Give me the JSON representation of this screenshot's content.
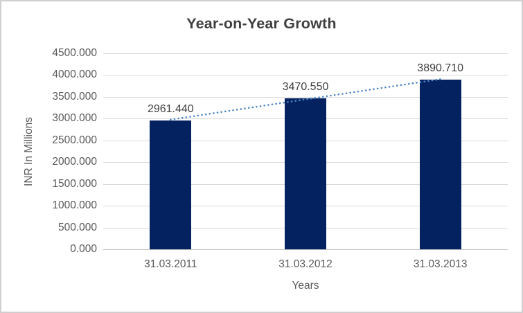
{
  "chart_data": {
    "type": "bar",
    "title": "Year-on-Year Growth",
    "xlabel": "Years",
    "ylabel": "INR In Millions",
    "categories": [
      "31.03.2011",
      "31.03.2012",
      "31.03.2013"
    ],
    "values": [
      2961.44,
      3470.55,
      3890.71
    ],
    "data_labels": [
      "2961.440",
      "3470.550",
      "3890.710"
    ],
    "ylim": [
      0,
      4500
    ],
    "ytick_step": 500,
    "ytick_labels": [
      "0.000",
      "500.000",
      "1000.000",
      "1500.000",
      "2000.000",
      "2500.000",
      "3000.000",
      "3500.000",
      "4000.000",
      "4500.000"
    ],
    "grid": true,
    "legend": "none",
    "trendline": {
      "type": "linear",
      "style": "dotted"
    },
    "colors": {
      "bar": "#052260",
      "trendline": "#4d87c8",
      "gridline": "#d9d9d9",
      "axis_line": "#bfbfbf",
      "title_text": "#404040",
      "tick_text": "#595959",
      "data_label_text": "#404040",
      "background": "#ffffff",
      "border": "#d0cece"
    }
  }
}
